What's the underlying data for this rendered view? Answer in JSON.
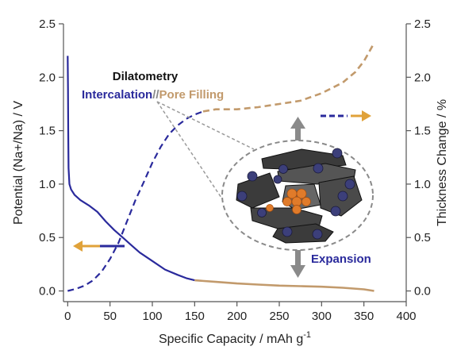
{
  "chart_data": {
    "type": "line",
    "xlabel": "Specific Capacity / mAh g",
    "xlabel_sup": "-1",
    "ylabel_left": "Potential (Na+/Na) / V",
    "ylabel_right": "Thickness Change / %",
    "xlim": [
      -5,
      400
    ],
    "ylim_left": [
      -0.1,
      2.5
    ],
    "ylim_right": [
      -0.1,
      2.5
    ],
    "x_ticks": [
      "0",
      "50",
      "100",
      "150",
      "200",
      "250",
      "300",
      "350",
      "400"
    ],
    "y_left_ticks": [
      "0.0",
      "0.5",
      "1.0",
      "1.5",
      "2.0",
      "2.5"
    ],
    "y_right_ticks": [
      "0.0",
      "0.5",
      "1.0",
      "1.5",
      "2.0",
      "2.5"
    ],
    "series": [
      {
        "axis": "left",
        "color_intercalation": "#2a2a9c",
        "color_pore_filling": "#c29a6c",
        "split_x": 150,
        "x": [
          0,
          0.3,
          0.6,
          1,
          2,
          4,
          8,
          15,
          25,
          35,
          45,
          55,
          65,
          75,
          85,
          100,
          115,
          130,
          140,
          150,
          175,
          200,
          225,
          250,
          275,
          300,
          325,
          350,
          362
        ],
        "y": [
          2.2,
          1.9,
          1.5,
          1.15,
          1.0,
          0.95,
          0.9,
          0.85,
          0.8,
          0.74,
          0.65,
          0.57,
          0.5,
          0.43,
          0.36,
          0.28,
          0.2,
          0.15,
          0.12,
          0.1,
          0.085,
          0.07,
          0.06,
          0.05,
          0.045,
          0.04,
          0.03,
          0.015,
          0.0
        ]
      },
      {
        "axis": "right",
        "style": "dashed",
        "color_intercalation": "#2a2a9c",
        "color_pore_filling": "#c29a6c",
        "split_x": 160,
        "x": [
          0,
          10,
          20,
          30,
          40,
          50,
          60,
          70,
          80,
          90,
          100,
          110,
          120,
          130,
          140,
          150,
          160,
          175,
          200,
          225,
          250,
          275,
          300,
          325,
          340,
          350,
          355,
          362
        ],
        "y": [
          0.0,
          0.02,
          0.05,
          0.1,
          0.18,
          0.3,
          0.45,
          0.65,
          0.85,
          1.02,
          1.2,
          1.35,
          1.47,
          1.55,
          1.61,
          1.65,
          1.68,
          1.7,
          1.7,
          1.72,
          1.75,
          1.78,
          1.85,
          1.95,
          2.05,
          2.15,
          2.22,
          2.32
        ]
      }
    ],
    "annotations": {
      "title": "Dilatometry",
      "intercalation_label": "Intercalation",
      "separator": "//",
      "pore_filling_label": "Pore Filling",
      "expansion_label": "Expansion"
    }
  }
}
